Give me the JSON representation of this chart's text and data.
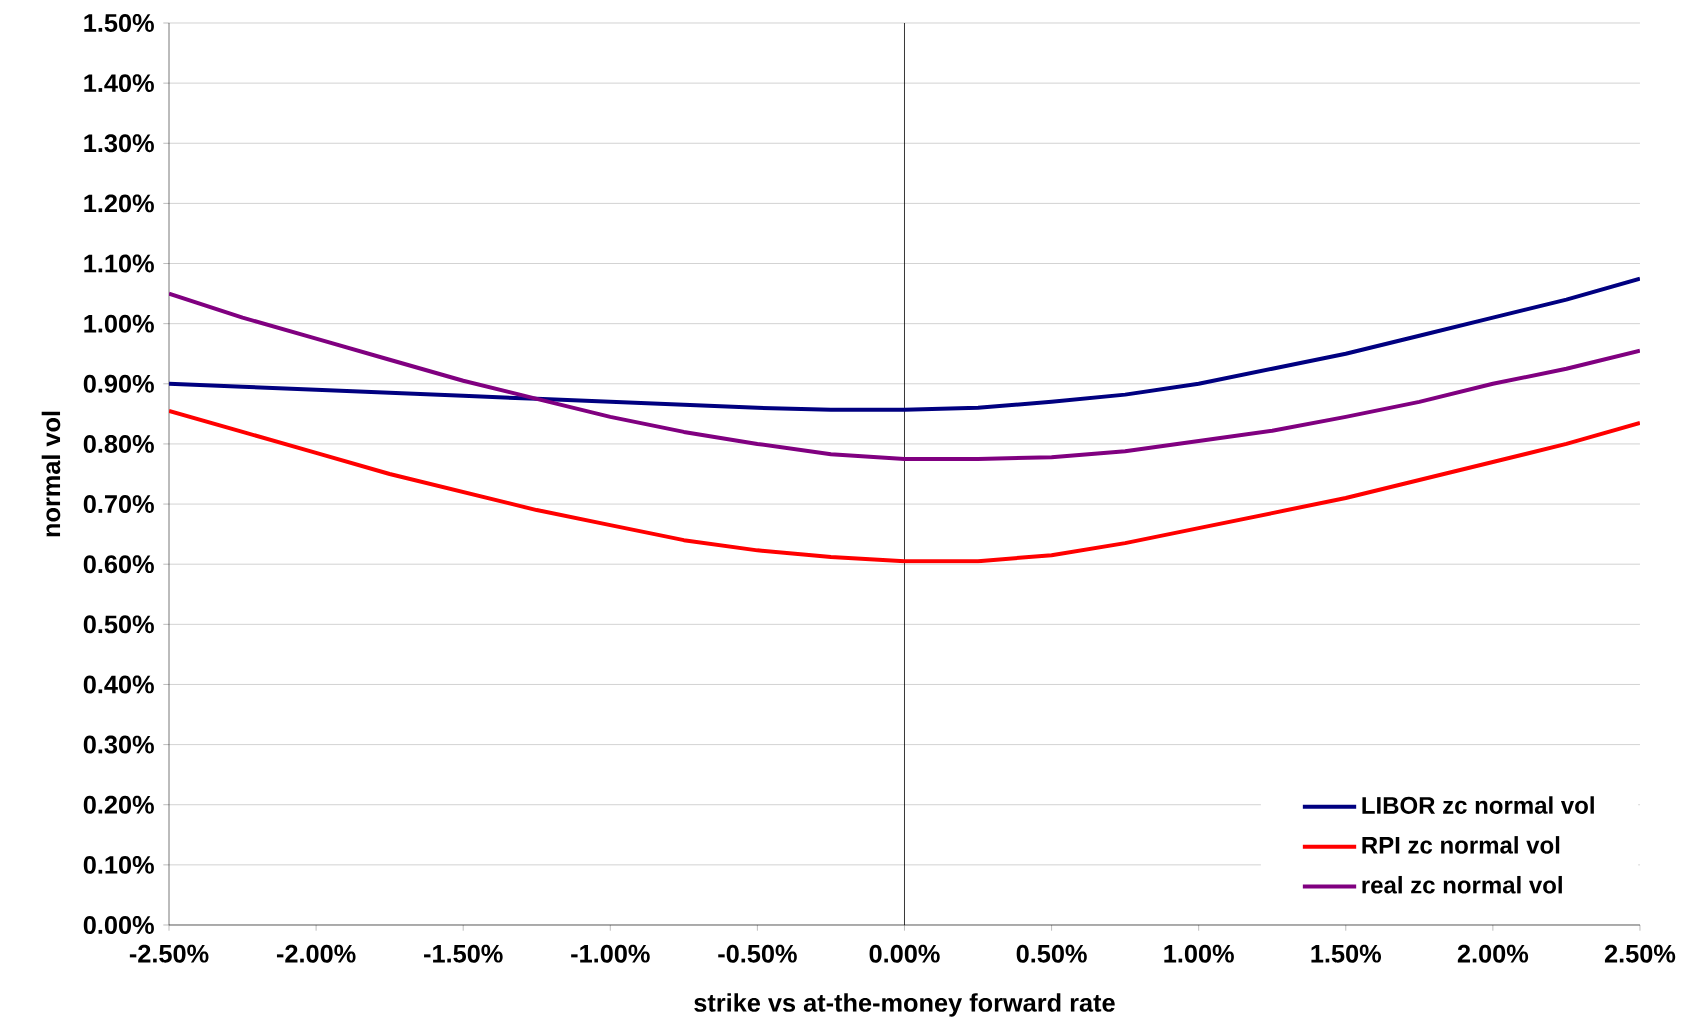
{
  "chart_data": {
    "type": "line",
    "xlabel": "strike vs at-the-money forward rate",
    "ylabel": "normal vol",
    "x": [
      -2.5,
      -2.25,
      -2.0,
      -1.75,
      -1.5,
      -1.25,
      -1.0,
      -0.75,
      -0.5,
      -0.25,
      0,
      0.25,
      0.5,
      0.75,
      1.0,
      1.25,
      1.5,
      1.75,
      2.0,
      2.25,
      2.5
    ],
    "series": [
      {
        "name": "LIBOR zc normal vol",
        "color": "#000080",
        "values": [
          0.9,
          0.895,
          0.89,
          0.885,
          0.88,
          0.875,
          0.87,
          0.865,
          0.86,
          0.857,
          0.857,
          0.86,
          0.87,
          0.882,
          0.9,
          0.925,
          0.95,
          0.98,
          1.01,
          1.04,
          1.075
        ]
      },
      {
        "name": "RPI zc normal vol",
        "color": "#ff0000",
        "values": [
          0.855,
          0.82,
          0.785,
          0.75,
          0.72,
          0.69,
          0.665,
          0.64,
          0.623,
          0.612,
          0.605,
          0.605,
          0.615,
          0.635,
          0.66,
          0.685,
          0.71,
          0.74,
          0.77,
          0.8,
          0.835
        ]
      },
      {
        "name": "real zc normal vol",
        "color": "#800080",
        "values": [
          1.05,
          1.01,
          0.975,
          0.94,
          0.905,
          0.875,
          0.845,
          0.82,
          0.8,
          0.783,
          0.775,
          0.775,
          0.778,
          0.788,
          0.805,
          0.822,
          0.845,
          0.87,
          0.9,
          0.925,
          0.955
        ]
      }
    ],
    "xlim": [
      -2.5,
      2.5
    ],
    "xticks": [
      {
        "value": -2.5,
        "label": "-2.50%"
      },
      {
        "value": -2.0,
        "label": "-2.00%"
      },
      {
        "value": -1.5,
        "label": "-1.50%"
      },
      {
        "value": -1.0,
        "label": "-1.00%"
      },
      {
        "value": -0.5,
        "label": "-0.50%"
      },
      {
        "value": 0,
        "label": "0.00%"
      },
      {
        "value": 0.5,
        "label": "0.50%"
      },
      {
        "value": 1.0,
        "label": "1.00%"
      },
      {
        "value": 1.5,
        "label": "1.50%"
      },
      {
        "value": 2.0,
        "label": "2.00%"
      },
      {
        "value": 2.5,
        "label": "2.50%"
      }
    ],
    "ylim": [
      0,
      1.5
    ],
    "yticks": [
      {
        "value": 0,
        "label": "0.00%"
      },
      {
        "value": 0.1,
        "label": "0.10%"
      },
      {
        "value": 0.2,
        "label": "0.20%"
      },
      {
        "value": 0.3,
        "label": "0.30%"
      },
      {
        "value": 0.4,
        "label": "0.40%"
      },
      {
        "value": 0.5,
        "label": "0.50%"
      },
      {
        "value": 0.6,
        "label": "0.60%"
      },
      {
        "value": 0.7,
        "label": "0.70%"
      },
      {
        "value": 0.8,
        "label": "0.80%"
      },
      {
        "value": 0.9,
        "label": "0.90%"
      },
      {
        "value": 1.0,
        "label": "1.00%"
      },
      {
        "value": 1.1,
        "label": "1.10%"
      },
      {
        "value": 1.2,
        "label": "1.20%"
      },
      {
        "value": 1.3,
        "label": "1.30%"
      },
      {
        "value": 1.4,
        "label": "1.40%"
      },
      {
        "value": 1.5,
        "label": "1.50%"
      }
    ],
    "ref_lines": [
      {
        "axis": "x",
        "value": 0,
        "color": "#000000"
      }
    ],
    "grid": "y",
    "legend": "bottom right",
    "marker": "none",
    "line_style": "solid"
  }
}
